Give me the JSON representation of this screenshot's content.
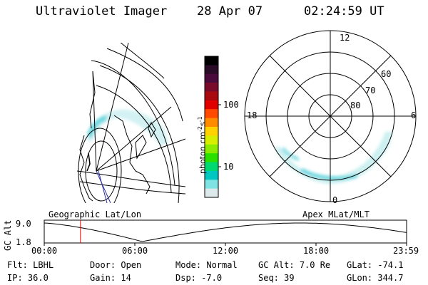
{
  "header": {
    "instrument": "Ultraviolet Imager",
    "date": "28 Apr 07",
    "time": "02:24:59 UT"
  },
  "colorbar": {
    "label": "photon cm",
    "label_sup1": "-2",
    "label_mid": "s",
    "label_sup2": "-1",
    "ticks": [
      "100",
      "10"
    ],
    "colors": [
      "#000000",
      "#2a0b28",
      "#4a0a3c",
      "#7a0a2a",
      "#a80a10",
      "#e00000",
      "#ff4a00",
      "#ff8c00",
      "#ffd200",
      "#d8ee00",
      "#8cec00",
      "#2ae000",
      "#00d870",
      "#00c8c0",
      "#7fe3e3",
      "#dde8ea"
    ]
  },
  "left_map": {
    "label": "Geographic Lat/Lon"
  },
  "polar_map": {
    "label": "Apex MLat/MLT",
    "mlt_labels": {
      "top": "12",
      "left": "18",
      "right": "6",
      "bottom": "0"
    },
    "lat_labels": [
      "60",
      "70",
      "80"
    ]
  },
  "orbit_plot": {
    "ylabel": "GC Alt",
    "y_ticks": [
      "9.0",
      "1.8"
    ],
    "x_ticks": [
      "00:00",
      "06:00",
      "12:00",
      "18:00",
      "23:59"
    ],
    "current_time_fraction": 0.1
  },
  "status": {
    "row1": [
      {
        "label": "Flt:",
        "value": "LBHL"
      },
      {
        "label": "Door:",
        "value": "Open"
      },
      {
        "label": "Mode:",
        "value": "Normal"
      },
      {
        "label": "GC Alt:",
        "value": "7.0 Re"
      },
      {
        "label": "GLat:",
        "value": "-74.1"
      }
    ],
    "row2": [
      {
        "label": "IP:",
        "value": "36.0"
      },
      {
        "label": "Gain:",
        "value": "14"
      },
      {
        "label": "Dsp:",
        "value": "-7.0"
      },
      {
        "label": "Seq:",
        "value": "39"
      },
      {
        "label": "GLon:",
        "value": "344.7"
      }
    ]
  }
}
